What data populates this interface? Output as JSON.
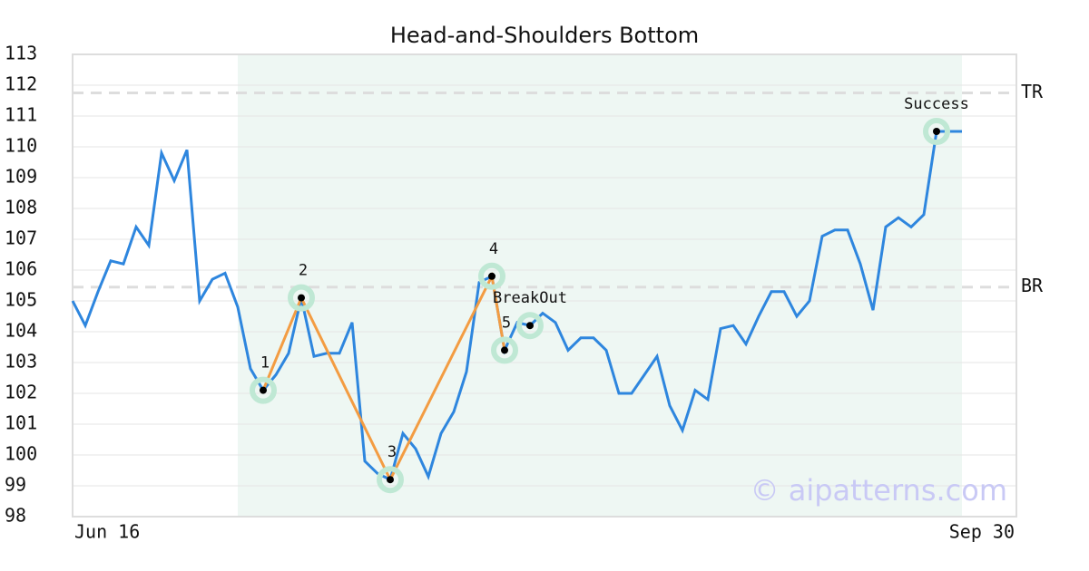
{
  "chart_data": {
    "type": "line",
    "title": "Head-and-Shoulders Bottom",
    "categories": [
      "Jun 16",
      null,
      null,
      null,
      null,
      null,
      null,
      null,
      null,
      null,
      null,
      null,
      null,
      null,
      null,
      null,
      null,
      null,
      null,
      null,
      null,
      null,
      null,
      null,
      null,
      null,
      null,
      null,
      null,
      null,
      null,
      null,
      null,
      null,
      null,
      null,
      null,
      null,
      null,
      null,
      null,
      null,
      null,
      null,
      null,
      null,
      null,
      null,
      null,
      null,
      null,
      null,
      null,
      null,
      null,
      null,
      null,
      null,
      null,
      null,
      null,
      null,
      null,
      null,
      null,
      null,
      null,
      null,
      null,
      null,
      "Sep 30"
    ],
    "series": [
      {
        "color": "#2e86de",
        "values": [
          105.0,
          104.2,
          105.3,
          106.3,
          106.2,
          107.4,
          106.8,
          109.8,
          108.9,
          109.9,
          105.0,
          105.7,
          105.9,
          104.8,
          102.8,
          102.1,
          102.6,
          103.3,
          105.1,
          103.2,
          103.3,
          103.3,
          104.3,
          99.8,
          99.4,
          99.2,
          100.7,
          100.2,
          99.3,
          100.7,
          101.4,
          102.7,
          105.6,
          105.8,
          103.4,
          104.3,
          104.2,
          104.6,
          104.3,
          103.4,
          103.8,
          103.8,
          103.4,
          102.0,
          102.0,
          102.6,
          103.2,
          101.6,
          100.8,
          102.1,
          101.8,
          104.1,
          104.2,
          103.6,
          104.5,
          105.3,
          105.3,
          104.5,
          105.0,
          107.1,
          107.3,
          107.3,
          106.2,
          104.7,
          107.4,
          107.7,
          107.4,
          107.8,
          110.5,
          110.5,
          110.5
        ]
      }
    ],
    "ylim": [
      98,
      113
    ],
    "yticks": [
      98,
      99,
      100,
      101,
      102,
      103,
      104,
      105,
      106,
      107,
      108,
      109,
      110,
      111,
      112,
      113
    ],
    "grid": true,
    "highlight": {
      "start": 13,
      "end": 70,
      "color": "#eef7f3"
    },
    "levels": [
      {
        "label": "TR",
        "value": 111.75
      },
      {
        "label": "BR",
        "value": 105.45
      }
    ],
    "pattern_color": "#f39c42",
    "pattern_points": [
      {
        "label": "1",
        "index": 15,
        "value": 102.1
      },
      {
        "label": "2",
        "index": 18,
        "value": 105.1
      },
      {
        "label": "3",
        "index": 25,
        "value": 99.2
      },
      {
        "label": "4",
        "index": 33,
        "value": 105.8
      },
      {
        "label": "5",
        "index": 34,
        "value": 103.4
      }
    ],
    "markers": [
      {
        "label": "BreakOut",
        "index": 36,
        "value": 104.2
      },
      {
        "label": "Success",
        "index": 68,
        "value": 110.5
      }
    ],
    "watermark": "© aipatterns.com"
  }
}
